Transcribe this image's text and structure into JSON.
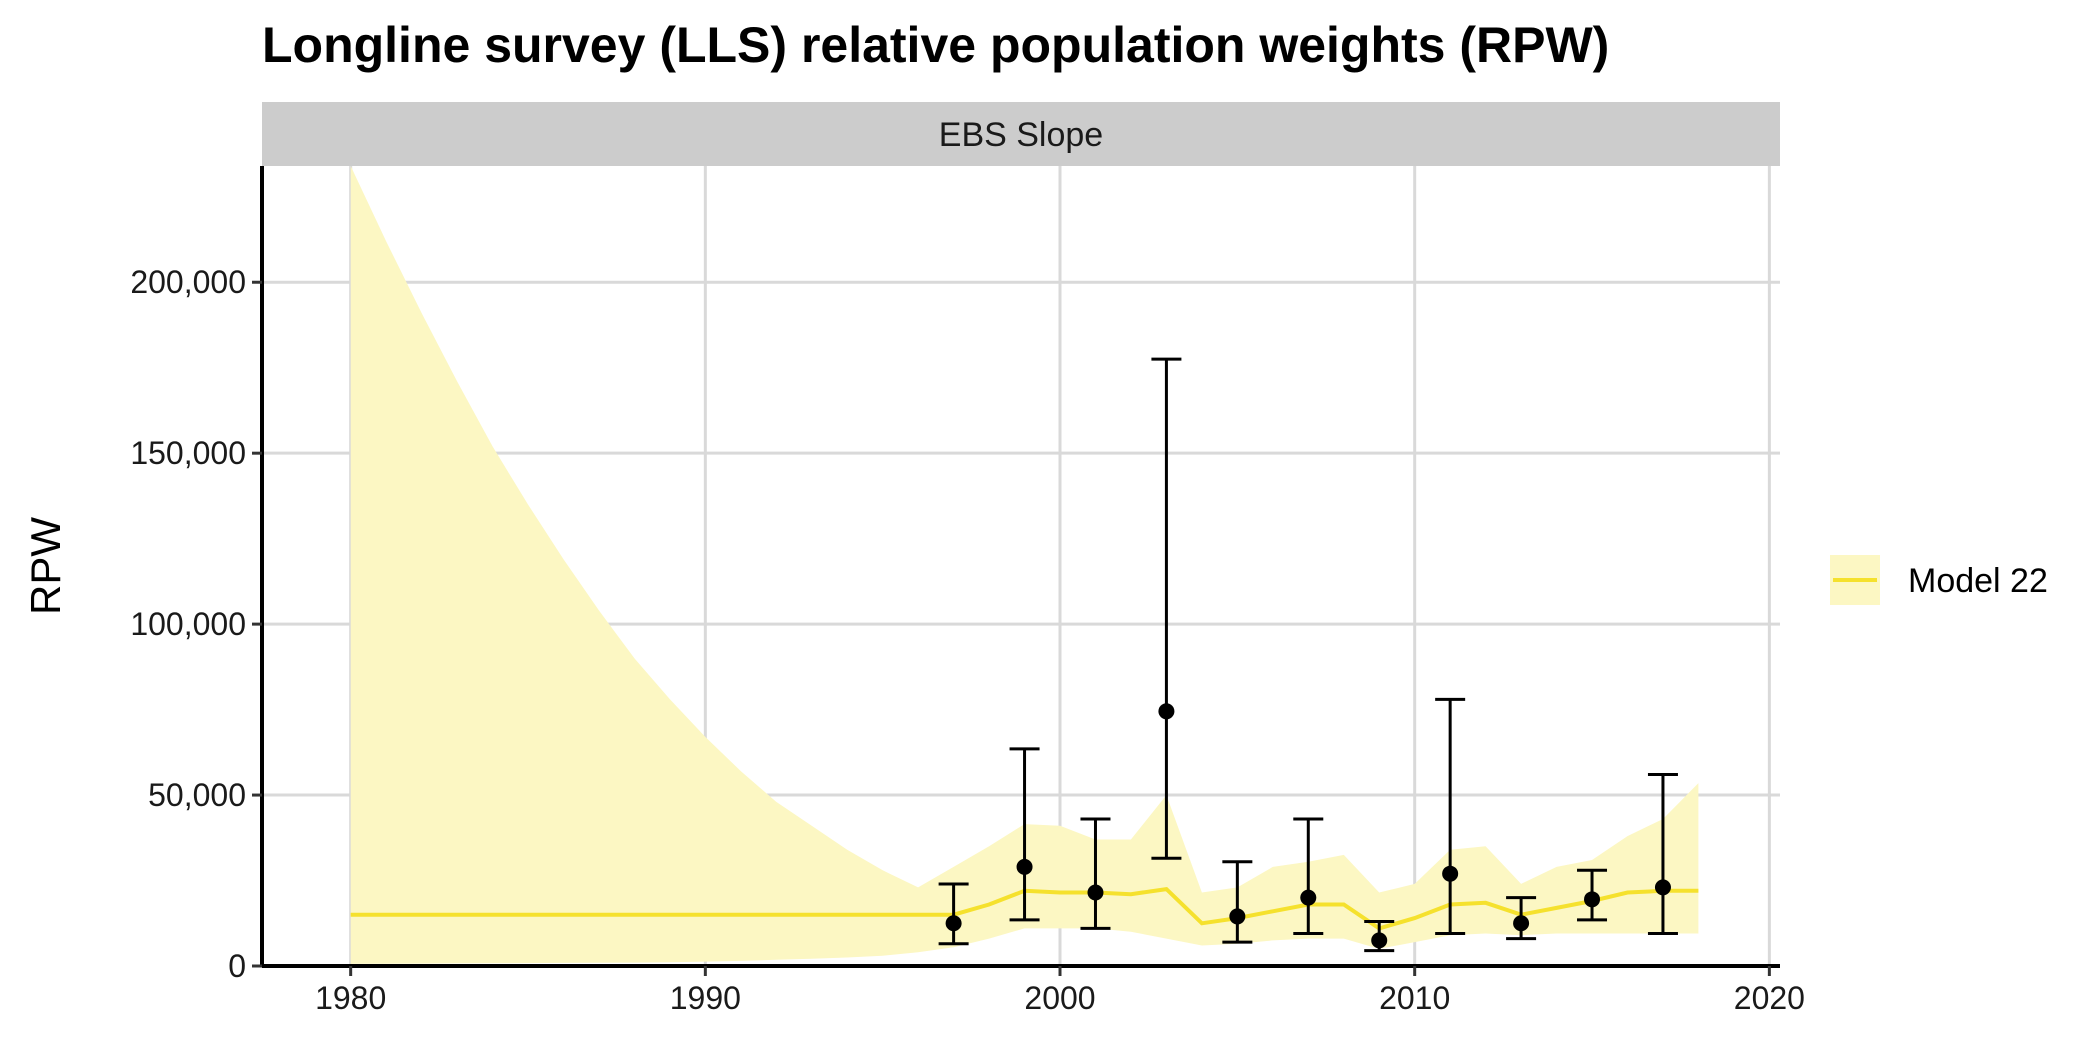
{
  "chart_data": {
    "type": "line",
    "title": "Longline survey (LLS) relative population weights (RPW)",
    "facet": "EBS Slope",
    "xlabel": "",
    "ylabel": "RPW",
    "xlim": [
      1977.5,
      2020.3
    ],
    "ylim": [
      0,
      234000
    ],
    "x_ticks": [
      1980,
      1990,
      2000,
      2010,
      2020
    ],
    "y_ticks": [
      0,
      50000,
      100000,
      150000,
      200000
    ],
    "y_tick_labels": [
      "0",
      "50,000",
      "100,000",
      "150,000",
      "200,000"
    ],
    "x_tick_labels": [
      "1980",
      "1990",
      "2000",
      "2010",
      "2020"
    ],
    "grid": true,
    "legend_position": "right",
    "colors": {
      "model_line": "#f5e12d",
      "model_band": "#fcf7c3",
      "observed": "#000000",
      "strip": "#cccccc",
      "grid": "#d9d9d9"
    },
    "series": [
      {
        "name": "Model 22",
        "kind": "model",
        "x": [
          1980,
          1981,
          1982,
          1983,
          1984,
          1985,
          1986,
          1987,
          1988,
          1989,
          1990,
          1991,
          1992,
          1993,
          1994,
          1995,
          1996,
          1997,
          1998,
          1999,
          2000,
          2001,
          2002,
          2003,
          2004,
          2005,
          2006,
          2007,
          2008,
          2009,
          2010,
          2011,
          2012,
          2013,
          2014,
          2015,
          2016,
          2017,
          2018
        ],
        "values": [
          15000,
          15000,
          15000,
          15000,
          15000,
          15000,
          15000,
          15000,
          15000,
          15000,
          15000,
          15000,
          15000,
          15000,
          15000,
          15000,
          15000,
          15000,
          18000,
          22000,
          21500,
          21500,
          21000,
          22500,
          12500,
          14000,
          16000,
          18000,
          18000,
          11000,
          14000,
          18000,
          18500,
          15000,
          17000,
          19000,
          21500,
          22000,
          22000
        ],
        "upper": [
          234000,
          212000,
          191000,
          171000,
          152000,
          135000,
          119000,
          104000,
          90000,
          78000,
          67000,
          57000,
          48000,
          41000,
          34000,
          28000,
          23000,
          29000,
          35000,
          41500,
          41000,
          37000,
          37000,
          50000,
          21500,
          23000,
          29000,
          30500,
          32500,
          21500,
          24000,
          34000,
          35000,
          24000,
          29000,
          31000,
          38000,
          43000,
          53500
        ],
        "lower": [
          600,
          650,
          700,
          750,
          800,
          850,
          900,
          950,
          1000,
          1100,
          1300,
          1500,
          1800,
          2100,
          2500,
          3000,
          4000,
          5500,
          8000,
          11000,
          11000,
          11000,
          10000,
          8000,
          6000,
          6500,
          7500,
          8000,
          8000,
          5000,
          7000,
          9000,
          9500,
          9000,
          9500,
          9500,
          9500,
          9500,
          9500
        ]
      },
      {
        "name": "",
        "kind": "observed",
        "x": [
          1997,
          1999,
          2001,
          2003,
          2005,
          2007,
          2009,
          2011,
          2013,
          2015,
          2017
        ],
        "values": [
          12500,
          29000,
          21500,
          74500,
          14500,
          20000,
          7500,
          27000,
          12500,
          19500,
          23000
        ],
        "upper": [
          24000,
          63500,
          43000,
          177500,
          30500,
          43000,
          13000,
          78000,
          20000,
          28000,
          56000
        ],
        "lower": [
          6500,
          13500,
          11000,
          31500,
          7000,
          9500,
          4500,
          9500,
          8000,
          13500,
          9500
        ]
      }
    ]
  }
}
